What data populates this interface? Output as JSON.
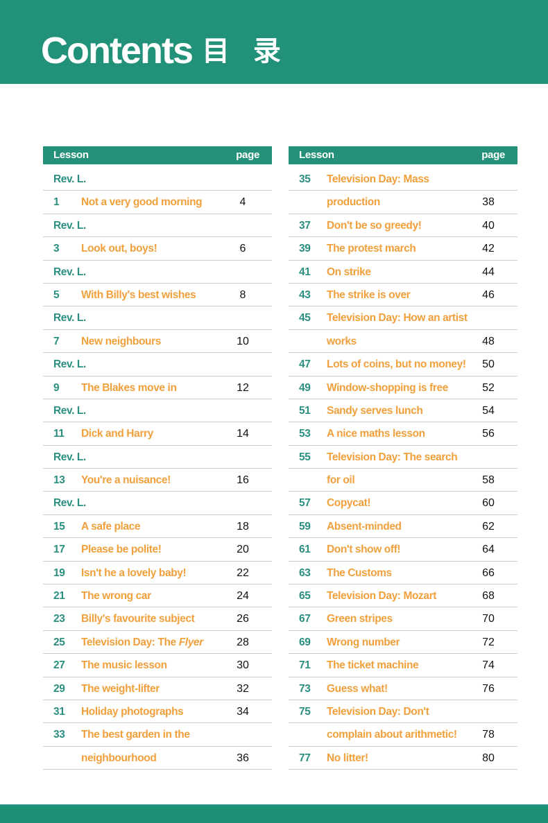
{
  "header": {
    "title": "Contents",
    "title_cn": "目 录"
  },
  "colors": {
    "green": "#22917a",
    "orange": "#f0a03c",
    "number": "#2a8f80"
  },
  "columns": {
    "lesson": "Lesson",
    "page": "page"
  },
  "left": [
    {
      "num": "Rev. L.",
      "title": "",
      "page": ""
    },
    {
      "num": "1",
      "title": "Not a very good morning",
      "page": "4"
    },
    {
      "num": "Rev. L.",
      "title": "",
      "page": ""
    },
    {
      "num": "3",
      "title": "Look out, boys!",
      "page": "6"
    },
    {
      "num": "Rev. L.",
      "title": "",
      "page": ""
    },
    {
      "num": "5",
      "title": "With Billy's best wishes",
      "page": "8"
    },
    {
      "num": "Rev. L.",
      "title": "",
      "page": ""
    },
    {
      "num": "7",
      "title": "New neighbours",
      "page": "10"
    },
    {
      "num": "Rev. L.",
      "title": "",
      "page": ""
    },
    {
      "num": "9",
      "title": "The Blakes move in",
      "page": "12"
    },
    {
      "num": "Rev. L.",
      "title": "",
      "page": ""
    },
    {
      "num": "11",
      "title": "Dick and Harry",
      "page": "14"
    },
    {
      "num": "Rev. L.",
      "title": "",
      "page": ""
    },
    {
      "num": "13",
      "title": "You're a nuisance!",
      "page": "16"
    },
    {
      "num": "Rev. L.",
      "title": "",
      "page": ""
    },
    {
      "num": "15",
      "title": "A safe place",
      "page": "18"
    },
    {
      "num": "17",
      "title": "Please be polite!",
      "page": "20"
    },
    {
      "num": "19",
      "title": "Isn't he a lovely baby!",
      "page": "22"
    },
    {
      "num": "21",
      "title": "The wrong car",
      "page": "24"
    },
    {
      "num": "23",
      "title": "Billy's favourite subject",
      "page": "26"
    },
    {
      "num": "25",
      "title": "Television Day: The ",
      "title_italic": "Flyer",
      "page": "28"
    },
    {
      "num": "27",
      "title": "The music lesson",
      "page": "30"
    },
    {
      "num": "29",
      "title": "The weight-lifter",
      "page": "32"
    },
    {
      "num": "31",
      "title": "Holiday photographs",
      "page": "34"
    },
    {
      "num": "33",
      "title": "The best garden in the",
      "page": ""
    },
    {
      "num": "",
      "title": "neighbourhood",
      "page": "36"
    }
  ],
  "right": [
    {
      "num": "35",
      "title": "Television Day: Mass",
      "page": ""
    },
    {
      "num": "",
      "title": "production",
      "page": "38"
    },
    {
      "num": "37",
      "title": "Don't be so greedy!",
      "page": "40"
    },
    {
      "num": "39",
      "title": "The protest march",
      "page": "42"
    },
    {
      "num": "41",
      "title": "On strike",
      "page": "44"
    },
    {
      "num": "43",
      "title": "The strike is over",
      "page": "46"
    },
    {
      "num": "45",
      "title": "Television Day: How an artist",
      "page": ""
    },
    {
      "num": "",
      "title": "works",
      "page": "48"
    },
    {
      "num": "47",
      "title": "Lots of coins, but no money!",
      "page": "50"
    },
    {
      "num": "49",
      "title": "Window-shopping is free",
      "page": "52"
    },
    {
      "num": "51",
      "title": "Sandy serves lunch",
      "page": "54"
    },
    {
      "num": "53",
      "title": "A nice maths lesson",
      "page": "56"
    },
    {
      "num": "55",
      "title": "Television Day: The search",
      "page": ""
    },
    {
      "num": "",
      "title": "for oil",
      "page": "58"
    },
    {
      "num": "57",
      "title": "Copycat!",
      "page": "60"
    },
    {
      "num": "59",
      "title": "Absent-minded",
      "page": "62"
    },
    {
      "num": "61",
      "title": "Don't show off!",
      "page": "64"
    },
    {
      "num": "63",
      "title": "The Customs",
      "page": "66"
    },
    {
      "num": "65",
      "title": "Television Day: Mozart",
      "page": "68"
    },
    {
      "num": "67",
      "title": "Green stripes",
      "page": "70"
    },
    {
      "num": "69",
      "title": " Wrong number",
      "page": "72"
    },
    {
      "num": "71",
      "title": "The ticket machine",
      "page": "74"
    },
    {
      "num": "73",
      "title": "Guess what!",
      "page": "76"
    },
    {
      "num": "75",
      "title": "Television Day: Don't",
      "page": ""
    },
    {
      "num": "",
      "title": "complain about arithmetic!",
      "page": "78"
    },
    {
      "num": "77",
      "title": "No litter!",
      "page": "80"
    }
  ]
}
